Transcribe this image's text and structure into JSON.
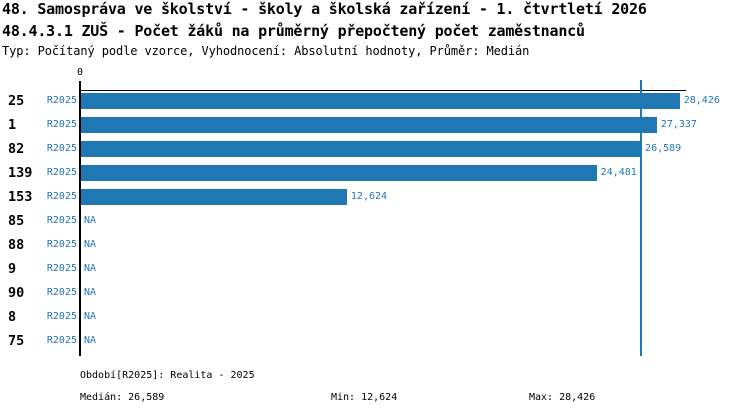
{
  "header": {
    "title_line1": "48. Samospráva ve školství - školy a školská zařízení - 1. čtvrtletí 2026",
    "title_line2": "48.4.3.1 ZUŠ - Počet žáků na průměrný přepočtený počet zaměstnanců",
    "subtitle": "Typ: Počítaný podle vzorce, Vyhodnocení: Absolutní hodnoty, Průměr: Medián"
  },
  "chart_data": {
    "type": "bar",
    "orientation": "horizontal",
    "categories": [
      "25",
      "1",
      "82",
      "139",
      "153",
      "85",
      "88",
      "9",
      "90",
      "8",
      "75"
    ],
    "series_label": "R2025",
    "values": [
      28426,
      27337,
      26589,
      24481,
      12624,
      null,
      null,
      null,
      null,
      null,
      null
    ],
    "value_labels": [
      "28,426",
      "27,337",
      "26,589",
      "24,481",
      "12,624",
      "NA",
      "NA",
      "NA",
      "NA",
      "NA",
      "NA"
    ],
    "na_label": "NA",
    "zero_label": "0",
    "xlim": [
      0,
      28770
    ],
    "median_value": 26589,
    "grid": false,
    "legend_position": "none",
    "colors": {
      "bar": "#1F77B4",
      "label_text": "#1F77B4",
      "median_line": "#1F77B4",
      "axis": "#000000",
      "title_text": "#000000",
      "background": "#FFFFFF"
    }
  },
  "footer": {
    "period": "Období[R2025]: Realita - 2025",
    "median": "Medián: 26,589",
    "min": "Min: 12,624",
    "max": "Max: 28,426"
  }
}
